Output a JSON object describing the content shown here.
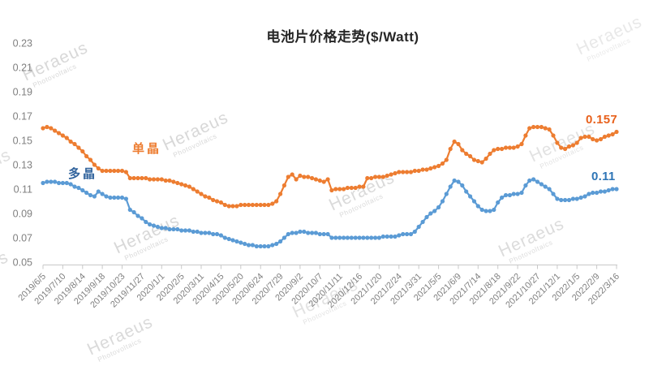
{
  "title": "电池片价格走势($/Watt)",
  "watermark": {
    "line1": "Heraeus",
    "line2": "Photovoltaics"
  },
  "chart_data": {
    "type": "line",
    "title": "电池片价格走势($/Watt)",
    "xlabel": "",
    "ylabel": "",
    "ylim": [
      0.05,
      0.23
    ],
    "yticks": [
      0.05,
      0.07,
      0.09,
      0.11,
      0.13,
      0.15,
      0.17,
      0.19,
      0.21,
      0.23
    ],
    "grid": false,
    "legend_position": "inline-labels",
    "x_frequency": "weekly",
    "points_per_tick": 5,
    "x_tick_labels": [
      "2019/6/5",
      "2019/7/10",
      "2019/8/14",
      "2019/9/18",
      "2019/10/23",
      "2019/11/27",
      "2020/1/1",
      "2020/2/5",
      "2020/3/11",
      "2020/4/15",
      "2020/5/20",
      "2020/6/24",
      "2020/7/29",
      "2020/9/2",
      "2020/10/7",
      "2020/11/11",
      "2020/12/16",
      "2021/1/20",
      "2021/2/24",
      "2021/3/31",
      "2021/5/5",
      "2021/6/9",
      "2021/7/14",
      "2021/8/18",
      "2021/9/22",
      "2021/10/27",
      "2021/12/1",
      "2022/1/5",
      "2022/2/9",
      "2022/3/16"
    ],
    "series": [
      {
        "name": "单晶",
        "color": "#ED7D31",
        "end_label": "0.157",
        "values": [
          0.16,
          0.161,
          0.16,
          0.158,
          0.156,
          0.154,
          0.152,
          0.149,
          0.147,
          0.144,
          0.141,
          0.137,
          0.134,
          0.13,
          0.127,
          0.125,
          0.125,
          0.125,
          0.125,
          0.125,
          0.125,
          0.124,
          0.119,
          0.119,
          0.119,
          0.119,
          0.119,
          0.118,
          0.118,
          0.118,
          0.118,
          0.117,
          0.117,
          0.116,
          0.115,
          0.114,
          0.113,
          0.112,
          0.11,
          0.108,
          0.106,
          0.104,
          0.103,
          0.101,
          0.1,
          0.099,
          0.097,
          0.096,
          0.096,
          0.096,
          0.097,
          0.097,
          0.097,
          0.097,
          0.097,
          0.097,
          0.097,
          0.097,
          0.098,
          0.1,
          0.106,
          0.113,
          0.12,
          0.122,
          0.118,
          0.121,
          0.12,
          0.12,
          0.119,
          0.118,
          0.117,
          0.116,
          0.118,
          0.109,
          0.11,
          0.11,
          0.11,
          0.111,
          0.111,
          0.111,
          0.112,
          0.112,
          0.119,
          0.119,
          0.12,
          0.12,
          0.12,
          0.121,
          0.122,
          0.123,
          0.124,
          0.124,
          0.124,
          0.124,
          0.125,
          0.125,
          0.126,
          0.126,
          0.127,
          0.128,
          0.129,
          0.131,
          0.134,
          0.143,
          0.149,
          0.147,
          0.142,
          0.139,
          0.137,
          0.134,
          0.133,
          0.132,
          0.135,
          0.139,
          0.142,
          0.143,
          0.143,
          0.144,
          0.144,
          0.144,
          0.145,
          0.147,
          0.154,
          0.16,
          0.161,
          0.161,
          0.161,
          0.16,
          0.159,
          0.154,
          0.148,
          0.144,
          0.143,
          0.145,
          0.146,
          0.148,
          0.152,
          0.153,
          0.153,
          0.151,
          0.15,
          0.151,
          0.153,
          0.154,
          0.155,
          0.157
        ]
      },
      {
        "name": "多晶",
        "color": "#5B9BD5",
        "end_label": "0.11",
        "values": [
          0.115,
          0.116,
          0.116,
          0.116,
          0.115,
          0.115,
          0.115,
          0.114,
          0.112,
          0.111,
          0.109,
          0.107,
          0.105,
          0.104,
          0.108,
          0.106,
          0.104,
          0.103,
          0.103,
          0.103,
          0.103,
          0.102,
          0.093,
          0.091,
          0.088,
          0.086,
          0.083,
          0.081,
          0.08,
          0.079,
          0.078,
          0.078,
          0.077,
          0.077,
          0.077,
          0.076,
          0.076,
          0.076,
          0.075,
          0.075,
          0.074,
          0.074,
          0.074,
          0.073,
          0.073,
          0.072,
          0.07,
          0.069,
          0.068,
          0.067,
          0.066,
          0.065,
          0.064,
          0.064,
          0.063,
          0.063,
          0.063,
          0.063,
          0.064,
          0.065,
          0.067,
          0.07,
          0.073,
          0.074,
          0.074,
          0.075,
          0.075,
          0.074,
          0.074,
          0.074,
          0.073,
          0.073,
          0.073,
          0.07,
          0.07,
          0.07,
          0.07,
          0.07,
          0.07,
          0.07,
          0.07,
          0.07,
          0.07,
          0.07,
          0.07,
          0.07,
          0.071,
          0.071,
          0.071,
          0.071,
          0.072,
          0.073,
          0.073,
          0.073,
          0.075,
          0.079,
          0.083,
          0.087,
          0.09,
          0.092,
          0.095,
          0.1,
          0.106,
          0.112,
          0.117,
          0.116,
          0.113,
          0.108,
          0.104,
          0.1,
          0.096,
          0.093,
          0.092,
          0.092,
          0.093,
          0.099,
          0.103,
          0.105,
          0.105,
          0.106,
          0.106,
          0.107,
          0.113,
          0.117,
          0.118,
          0.116,
          0.114,
          0.112,
          0.11,
          0.106,
          0.102,
          0.101,
          0.101,
          0.101,
          0.102,
          0.102,
          0.103,
          0.104,
          0.106,
          0.107,
          0.107,
          0.108,
          0.108,
          0.109,
          0.11,
          0.11
        ]
      }
    ],
    "axis_color": "#c8c8c8",
    "tick_label_color": "#808080"
  }
}
